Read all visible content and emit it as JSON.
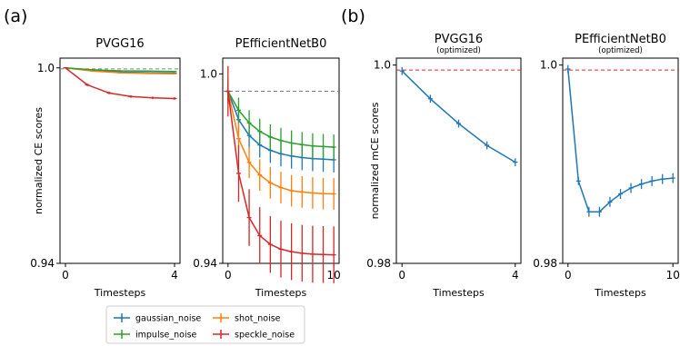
{
  "panel_labels": [
    "(a)",
    "(b)"
  ],
  "legend": {
    "entries": [
      {
        "name": "gaussian_noise",
        "color": "#1f77b4"
      },
      {
        "name": "shot_noise",
        "color": "#ff7f0e"
      },
      {
        "name": "impulse_noise",
        "color": "#2ca02c"
      },
      {
        "name": "speckle_noise",
        "color": "#d62728"
      }
    ]
  },
  "chart_data": [
    {
      "type": "line",
      "group": "(a)",
      "title": "PVGG16",
      "subtitle": "",
      "xlabel": "Timesteps",
      "ylabel": "normalized CE scores",
      "xlim": [
        -0.2,
        4.2
      ],
      "ylim": [
        0.94,
        1.003
      ],
      "xticks": [
        0,
        4
      ],
      "yticks": [
        0.94,
        1.0
      ],
      "ytick_labels": [
        "0.94",
        "1.0"
      ],
      "reference_line": {
        "y": 0.9997,
        "color": "#808080",
        "style": "dashed"
      },
      "x": [
        0,
        1,
        2,
        3,
        4
      ],
      "series": [
        {
          "name": "gaussian_noise",
          "color": "#1f77b4",
          "values": [
            1.0,
            0.9992,
            0.9987,
            0.9985,
            0.9984
          ],
          "err": [
            0.0002,
            0.0002,
            0.0002,
            0.0002,
            0.0002
          ]
        },
        {
          "name": "shot_noise",
          "color": "#ff7f0e",
          "values": [
            1.0,
            0.999,
            0.9985,
            0.9983,
            0.9982
          ],
          "err": [
            0.0002,
            0.0002,
            0.0002,
            0.0002,
            0.0002
          ]
        },
        {
          "name": "impulse_noise",
          "color": "#2ca02c",
          "values": [
            1.0,
            0.9994,
            0.9991,
            0.999,
            0.9989
          ],
          "err": [
            0.0002,
            0.0002,
            0.0002,
            0.0002,
            0.0002
          ]
        },
        {
          "name": "speckle_noise",
          "color": "#d62728",
          "values": [
            1.0,
            0.9948,
            0.9923,
            0.9912,
            0.9908,
            0.9906
          ],
          "x": [
            0,
            0.8,
            1.6,
            2.4,
            3.2,
            4
          ],
          "err": [
            0.0002,
            0.0004,
            0.0004,
            0.0004,
            0.0004,
            0.0004
          ]
        }
      ]
    },
    {
      "type": "line",
      "group": "(a)",
      "title": "PEfficientNetB0",
      "subtitle": "",
      "xlabel": "Timesteps",
      "ylabel": "",
      "xlim": [
        -0.5,
        10.5
      ],
      "ylim": [
        0.94,
        1.005
      ],
      "xticks": [
        0,
        10
      ],
      "yticks": [
        0.94,
        1.0
      ],
      "ytick_labels": [
        "0.94",
        "1.0"
      ],
      "reference_line": {
        "y": 0.9945,
        "color": "#808080",
        "style": "dashed"
      },
      "x": [
        0,
        1,
        2,
        3,
        4,
        5,
        6,
        7,
        8,
        9,
        10
      ],
      "series": [
        {
          "name": "gaussian_noise",
          "color": "#1f77b4",
          "values": [
            0.9945,
            0.9855,
            0.9805,
            0.9775,
            0.9758,
            0.9747,
            0.974,
            0.9735,
            0.9732,
            0.973,
            0.9728
          ],
          "err": [
            0.003,
            0.004,
            0.004,
            0.004,
            0.004,
            0.004,
            0.004,
            0.004,
            0.004,
            0.004,
            0.004
          ]
        },
        {
          "name": "shot_noise",
          "color": "#ff7f0e",
          "values": [
            0.9945,
            0.9795,
            0.972,
            0.968,
            0.9655,
            0.964,
            0.963,
            0.9626,
            0.9623,
            0.9621,
            0.962
          ],
          "err": [
            0.004,
            0.005,
            0.005,
            0.005,
            0.005,
            0.005,
            0.005,
            0.005,
            0.005,
            0.005,
            0.005
          ]
        },
        {
          "name": "impulse_noise",
          "color": "#2ca02c",
          "values": [
            0.9945,
            0.9885,
            0.9845,
            0.9818,
            0.98,
            0.9789,
            0.9781,
            0.9776,
            0.9772,
            0.977,
            0.9768
          ],
          "err": [
            0.003,
            0.004,
            0.004,
            0.004,
            0.004,
            0.004,
            0.004,
            0.004,
            0.004,
            0.004,
            0.004
          ]
        },
        {
          "name": "speckle_noise",
          "color": "#d62728",
          "values": [
            0.9945,
            0.9685,
            0.9545,
            0.9488,
            0.946,
            0.9445,
            0.9437,
            0.9432,
            0.9429,
            0.9428,
            0.9427
          ],
          "err": [
            0.008,
            0.009,
            0.009,
            0.009,
            0.009,
            0.009,
            0.009,
            0.009,
            0.009,
            0.009,
            0.009
          ]
        }
      ]
    },
    {
      "type": "line",
      "group": "(b)",
      "title": "PVGG16",
      "subtitle": "(optimized)",
      "xlabel": "Timesteps",
      "ylabel": "normalized mCE scores",
      "xlim": [
        -0.2,
        4.2
      ],
      "ylim": [
        0.98,
        1.0007
      ],
      "xticks": [
        0,
        4
      ],
      "yticks": [
        0.98,
        1.0
      ],
      "ytick_labels": [
        "0.98",
        "1.0"
      ],
      "reference_line": {
        "y": 0.9995,
        "color": "#d62728",
        "style": "dashed"
      },
      "x": [
        0,
        1,
        2,
        3,
        4
      ],
      "series": [
        {
          "name": "gaussian_noise",
          "color": "#1f77b4",
          "values": [
            0.9994,
            0.9966,
            0.9941,
            0.9919,
            0.9902
          ],
          "err": [
            0.0004,
            0.0004,
            0.0004,
            0.0004,
            0.0004
          ]
        }
      ]
    },
    {
      "type": "line",
      "group": "(b)",
      "title": "PEfficientNetB0",
      "subtitle": "(optimized)",
      "xlabel": "Timesteps",
      "ylabel": "",
      "xlim": [
        -0.5,
        10.5
      ],
      "ylim": [
        0.98,
        1.0007
      ],
      "xticks": [
        0,
        10
      ],
      "yticks": [
        0.98,
        1.0
      ],
      "ytick_labels": [
        "0.98",
        "1.0"
      ],
      "reference_line": {
        "y": 0.9995,
        "color": "#d62728",
        "style": "dashed"
      },
      "x": [
        0,
        1,
        2,
        3,
        4,
        5,
        6,
        7,
        8,
        9,
        10
      ],
      "series": [
        {
          "name": "gaussian_noise",
          "color": "#1f77b4",
          "values": [
            0.9996,
            0.9883,
            0.9852,
            0.9852,
            0.9862,
            0.987,
            0.9876,
            0.988,
            0.9883,
            0.9885,
            0.9886
          ],
          "err": [
            0.0004,
            0.0004,
            0.0005,
            0.0005,
            0.0005,
            0.0005,
            0.0005,
            0.0005,
            0.0005,
            0.0005,
            0.0005
          ]
        }
      ]
    }
  ]
}
